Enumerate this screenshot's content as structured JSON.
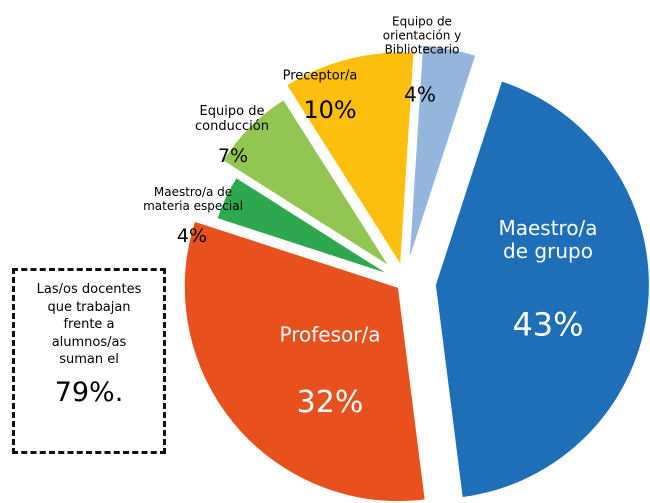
{
  "chart_data": {
    "type": "pie",
    "categories": [
      "Maestro/a de grupo",
      "Profesor/a",
      "Maestro/a de materia especial",
      "Equipo de conducción",
      "Preceptor/a",
      "Equipo de orientación y Bibliotecario"
    ],
    "values": [
      43,
      32,
      4,
      7,
      10,
      4
    ],
    "value_labels": [
      "43%",
      "32%",
      "4%",
      "7%",
      "10%",
      "4%"
    ],
    "colors": [
      "#1f6fb8",
      "#e8501d",
      "#2ea84f",
      "#92c551",
      "#fcbf0e",
      "#94b5dc"
    ],
    "annotation": {
      "text": "Las/os docentes que trabajan frente a alumnos/as suman el",
      "highlight": "79%."
    }
  }
}
